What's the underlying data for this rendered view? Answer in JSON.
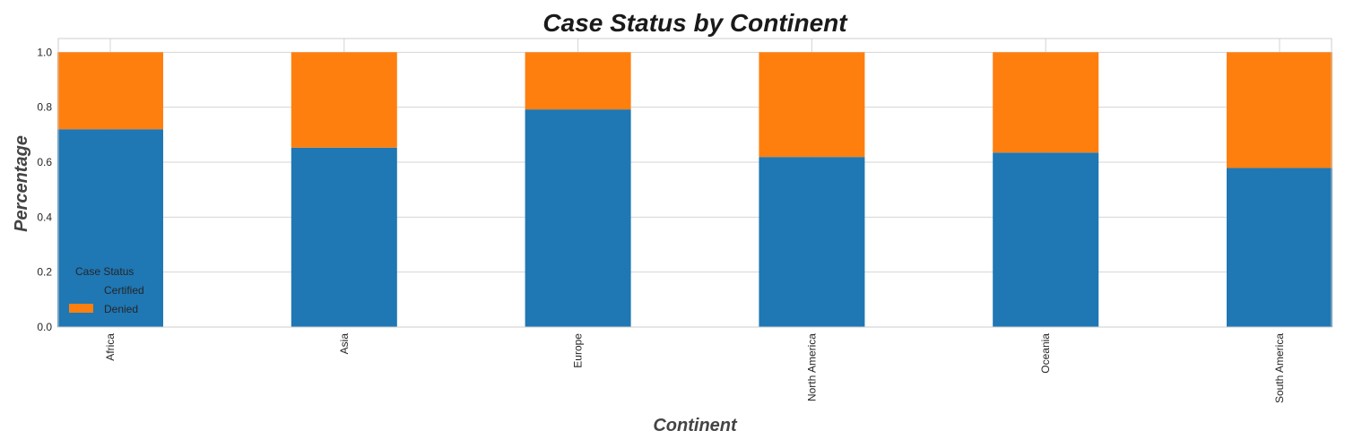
{
  "chart_data": {
    "type": "bar",
    "stacked": true,
    "title": "Case Status by Continent",
    "xlabel": "Continent",
    "ylabel": "Percentage",
    "categories": [
      "Africa",
      "Asia",
      "Europe",
      "North America",
      "Oceania",
      "South America"
    ],
    "series": [
      {
        "name": "Certified",
        "color": "#1f77b4",
        "values": [
          0.72,
          0.653,
          0.792,
          0.619,
          0.635,
          0.579
        ]
      },
      {
        "name": "Denied",
        "color": "#ff7f0e",
        "values": [
          0.28,
          0.347,
          0.208,
          0.381,
          0.365,
          0.421
        ]
      }
    ],
    "ylim": [
      0,
      1.05
    ],
    "yticks": [
      "0.0",
      "0.2",
      "0.4",
      "0.6",
      "0.8",
      "1.0"
    ],
    "grid": true,
    "legend": {
      "title": "Case Status",
      "placement": "lower-left"
    }
  }
}
